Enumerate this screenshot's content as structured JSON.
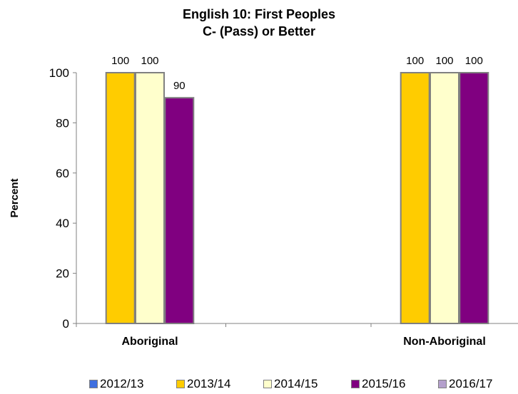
{
  "chart_data": {
    "type": "bar",
    "title": "English 10: First Peoples",
    "subtitle": "C- (Pass) or Better",
    "ylabel": "Percent",
    "xlabel": "",
    "ylim": [
      0,
      100
    ],
    "yticks": [
      0,
      20,
      40,
      60,
      80,
      100
    ],
    "categories": [
      "Aboriginal",
      "Non-Aboriginal"
    ],
    "series": [
      {
        "name": "2012/13",
        "color": "#3f6fe0",
        "values": [
          null,
          null
        ]
      },
      {
        "name": "2013/14",
        "color": "#ffcc00",
        "values": [
          100,
          100
        ]
      },
      {
        "name": "2014/15",
        "color": "#ffffcc",
        "values": [
          100,
          100
        ]
      },
      {
        "name": "2015/16",
        "color": "#800080",
        "values": [
          90,
          100
        ]
      },
      {
        "name": "2016/17",
        "color": "#b4a0cc",
        "values": [
          null,
          null
        ]
      }
    ],
    "grid": false,
    "legend_position": "bottom"
  }
}
